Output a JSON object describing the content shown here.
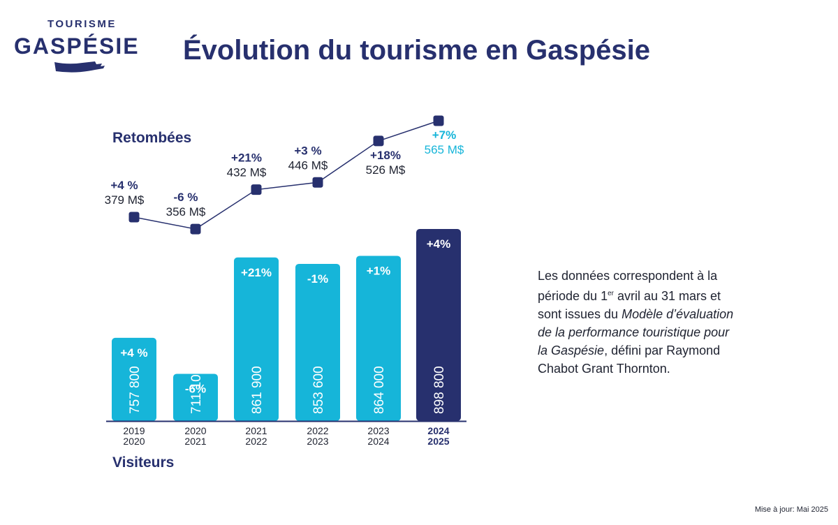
{
  "header": {
    "logo_top": "TOURISME",
    "logo_main": "GASPÉSIE",
    "title": "Évolution du tourisme en Gaspésie"
  },
  "labels": {
    "retombees": "Retombées",
    "visiteurs": "Visiteurs"
  },
  "note": {
    "part1": "Les données correspondent à la période du 1",
    "sup": "er",
    "part2": " avril au 31 mars et sont issues du ",
    "italic": "Modèle d’évaluation de la performance touristique pour la Gaspésie",
    "part3": ", défini par Raymond Chabot Grant Thornton."
  },
  "update": "Mise à jour: Mai 2025",
  "colors": {
    "navy": "#27306e",
    "cyan": "#16b5d9",
    "text": "#1e2230"
  },
  "chart_data": {
    "type": "bar+line",
    "periods": [
      [
        "2019",
        "2020"
      ],
      [
        "2020",
        "2021"
      ],
      [
        "2021",
        "2022"
      ],
      [
        "2022",
        "2023"
      ],
      [
        "2023",
        "2024"
      ],
      [
        "2024",
        "2025"
      ]
    ],
    "highlight_index": 5,
    "visitors": {
      "values": [
        757800,
        711100,
        861900,
        853600,
        864000,
        898800
      ],
      "labels": [
        "757 800",
        "711 100",
        "861 900",
        "853 600",
        "864 000",
        "898 800"
      ],
      "changes": [
        "+4 %",
        "-6%",
        "+21%",
        "-1%",
        "+1%",
        "+4%"
      ]
    },
    "retombees": {
      "values": [
        379,
        356,
        432,
        446,
        526,
        565
      ],
      "labels": [
        "379 M$",
        "356 M$",
        "432 M$",
        "446 M$",
        "526 M$",
        "565 M$"
      ],
      "changes": [
        "+4 %",
        "-6 %",
        "+21%",
        "+3 %",
        "+18%",
        "+7%"
      ]
    }
  }
}
